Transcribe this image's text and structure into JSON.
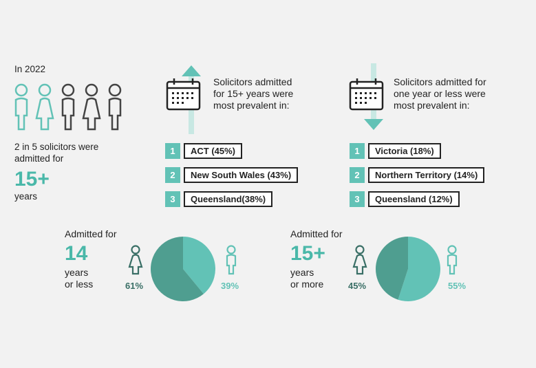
{
  "intro": {
    "year": "In 2022",
    "statement": "2 in 5 solicitors were admitted for",
    "highlight": "15+",
    "unit": "years"
  },
  "colors": {
    "teal": "#62c2b6",
    "dark_teal": "#4f9e90",
    "text": "#222222",
    "background": "#f2f2f2"
  },
  "longest": {
    "icons": [
      "calendar-icon",
      "up-arrow-icon"
    ],
    "title_lines": [
      "Solicitors admitted",
      "for 15+ years were",
      "most prevalent in:"
    ],
    "rankings": [
      {
        "rank": "1",
        "label": "ACT (45%)"
      },
      {
        "rank": "2",
        "label": "New South Wales (43%)"
      },
      {
        "rank": "3",
        "label": "Queensland(38%)"
      }
    ]
  },
  "shortest": {
    "icons": [
      "calendar-icon",
      "down-arrow-icon"
    ],
    "title_lines": [
      "Solicitors admitted for",
      "one year or less were",
      "most prevalent in:"
    ],
    "rankings": [
      {
        "rank": "1",
        "label": "Victoria (18%)"
      },
      {
        "rank": "2",
        "label": "Northern Territory (14%)"
      },
      {
        "rank": "3",
        "label": "Queensland (12%)"
      }
    ]
  },
  "chart_data": [
    {
      "type": "pie",
      "prefix": "Admitted for",
      "highlight": "14",
      "suffix_lines": [
        "years",
        "or less"
      ],
      "slices": [
        {
          "label": "female",
          "value": 61,
          "display": "61%",
          "color": "#4f9e90"
        },
        {
          "label": "male",
          "value": 39,
          "display": "39%",
          "color": "#62c2b6"
        }
      ]
    },
    {
      "type": "pie",
      "prefix": "Admitted for",
      "highlight": "15+",
      "suffix_lines": [
        "years",
        "or more"
      ],
      "slices": [
        {
          "label": "female",
          "value": 45,
          "display": "45%",
          "color": "#4f9e90"
        },
        {
          "label": "male",
          "value": 55,
          "display": "55%",
          "color": "#62c2b6"
        }
      ]
    }
  ]
}
